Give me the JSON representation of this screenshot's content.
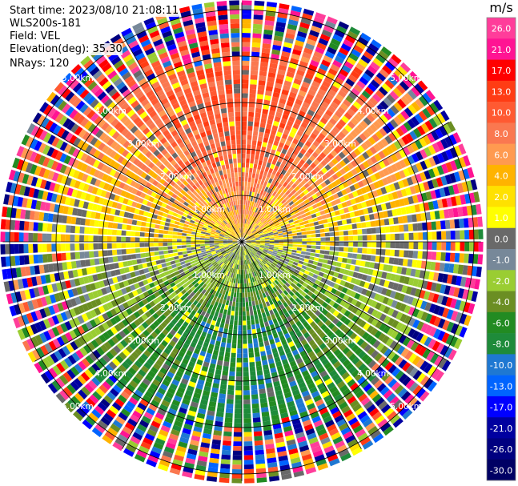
{
  "header": {
    "start_time": "Start time: 2023/08/10 21:08:11",
    "instrument": "WLS200s-181",
    "field": "Field: VEL",
    "elevation": "Elevation(deg): 35.30",
    "nrays": "NRays: 120"
  },
  "chart_data": {
    "type": "heatmap",
    "projection": "polar (PPI)",
    "n_rays": 120,
    "range_rings_km": [
      1.0,
      2.0,
      3.0,
      4.0,
      5.0
    ],
    "ring_labels": [
      "1.00km",
      "2.00km",
      "3.00km",
      "4.00km",
      "5.00km"
    ],
    "max_range_km": 5.15,
    "gate_spacing_km": 0.1,
    "colorbar": {
      "unit": "m/s",
      "ticks": [
        26.0,
        21.0,
        17.0,
        13.0,
        10.0,
        8.0,
        6.0,
        4.0,
        2.0,
        1.0,
        0.0,
        -1.0,
        -2.0,
        -4.0,
        -6.0,
        -8.0,
        -10.0,
        -13.0,
        -17.0,
        -21.0,
        -26.0,
        -30.0
      ],
      "tick_labels": [
        "26.0",
        "21.0",
        "17.0",
        "13.0",
        "10.0",
        "8.0",
        "6.0",
        "4.0",
        "2.0",
        "1.0",
        "0.0",
        "-1.0",
        "-2.0",
        "-4.0",
        "-6.0",
        "-8.0",
        "-10.0",
        "-13.0",
        "-17.0",
        "-21.0",
        "-26.0",
        "-30.0"
      ],
      "colors": [
        "#ff3d9a",
        "#ff1493",
        "#ff0000",
        "#ff3c14",
        "#ff5a32",
        "#fa7850",
        "#ff9a50",
        "#ffb300",
        "#ffe100",
        "#ffff00",
        "#696969",
        "#778899",
        "#9acd32",
        "#6b8e23",
        "#228b22",
        "#1e8b3a",
        "#1e78d2",
        "#0064ff",
        "#0000ff",
        "#0000a0",
        "#000080",
        "#000064"
      ]
    },
    "velocity_pattern": {
      "positive_toward_azimuth_deg": 0,
      "amplitude_ms": 9,
      "noise_start_km": 4.0
    }
  }
}
